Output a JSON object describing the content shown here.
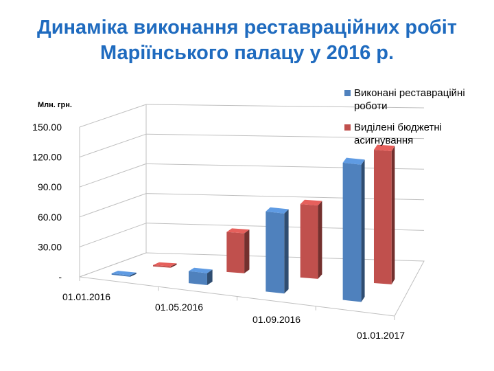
{
  "slide": {
    "title_line1": "Динаміка виконання реставраційних робіт",
    "title_line2": "Маріїнського палацу у 2016 р."
  },
  "chart_data": {
    "type": "bar",
    "title": "Динаміка виконання реставраційних робіт Маріїнського палацу у 2016 р.",
    "ylabel": "Млн. грн.",
    "xlabel": "",
    "categories": [
      "01.01.2016",
      "01.05.2016",
      "01.09.2016",
      "01.01.2017"
    ],
    "series": [
      {
        "name": "Виконані реставраційні роботи",
        "color": "#4f81bd",
        "values": [
          0.5,
          12,
          80,
          137
        ]
      },
      {
        "name": "Виділені бюджетні асигнування",
        "color": "#c0504d",
        "values": [
          0.5,
          40,
          73,
          132
        ]
      }
    ],
    "yticks": [
      "-",
      "30.00",
      "60.00",
      "90.00",
      "120.00",
      "150.00"
    ],
    "ytick_values": [
      0,
      30,
      60,
      90,
      120,
      150
    ],
    "ylim": [
      0,
      150
    ],
    "grid": true,
    "legend_position": "top-right",
    "view": "3d-perspective"
  }
}
